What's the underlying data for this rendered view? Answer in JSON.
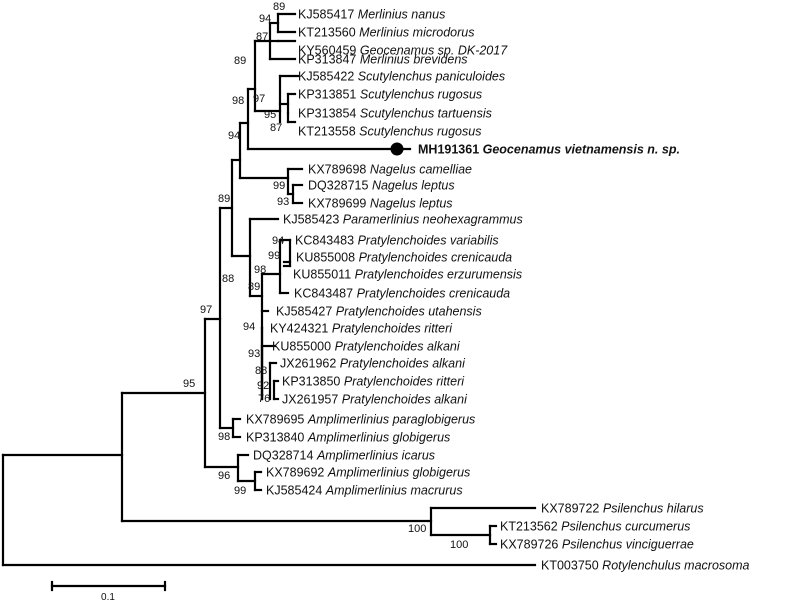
{
  "taxa": [
    {
      "acc": "KJ585417",
      "name": "Merlinius nanus"
    },
    {
      "acc": "KT213560",
      "name": "Merlinius microdorus"
    },
    {
      "acc": "KY560459",
      "name": "Geocenamus sp. DK-2017"
    },
    {
      "acc": "KP313847",
      "name": "Merlinius brevidens"
    },
    {
      "acc": "KJ585422",
      "name": "Scutylenchus paniculoides"
    },
    {
      "acc": "KP313851",
      "name": "Scutylenchus rugosus"
    },
    {
      "acc": "KP313854",
      "name": "Scutylenchus tartuensis"
    },
    {
      "acc": "KT213558",
      "name": "Scutylenchus rugosus"
    },
    {
      "acc": "MH191361",
      "name": "Geocenamus vietnamensis n. sp.",
      "highlight": true
    },
    {
      "acc": "KX789698",
      "name": "Nagelus camelliae"
    },
    {
      "acc": "DQ328715",
      "name": "Nagelus leptus"
    },
    {
      "acc": "KX789699",
      "name": "Nagelus leptus"
    },
    {
      "acc": "KJ585423",
      "name": "Paramerlinius neohexagrammus"
    },
    {
      "acc": "KC843483",
      "name": "Pratylenchoides variabilis"
    },
    {
      "acc": "KU855008",
      "name": "Pratylenchoides crenicauda"
    },
    {
      "acc": "KU855011",
      "name": "Pratylenchoides erzurumensis"
    },
    {
      "acc": "KC843487",
      "name": "Pratylenchoides crenicauda"
    },
    {
      "acc": "KJ585427",
      "name": "Pratylenchoides utahensis"
    },
    {
      "acc": "KY424321",
      "name": "Pratylenchoides ritteri"
    },
    {
      "acc": "KU855000",
      "name": "Pratylenchoides alkani"
    },
    {
      "acc": "JX261962",
      "name": "Pratylenchoides alkani"
    },
    {
      "acc": "KP313850",
      "name": "Pratylenchoides ritteri"
    },
    {
      "acc": "JX261957",
      "name": "Pratylenchoides alkani"
    },
    {
      "acc": "KX789695",
      "name": "Amplimerlinius paraglobigerus"
    },
    {
      "acc": "KP313840",
      "name": "Amplimerlinius globigerus"
    },
    {
      "acc": "DQ328714",
      "name": "Amplimerlinius icarus"
    },
    {
      "acc": "KX789692",
      "name": "Amplimerlinius globigerus"
    },
    {
      "acc": "KJ585424",
      "name": "Amplimerlinius macrurus"
    },
    {
      "acc": "KX789722",
      "name": "Psilenchus hilarus"
    },
    {
      "acc": "KT213562",
      "name": "Psilenchus curcumerus"
    },
    {
      "acc": "KX789726",
      "name": "Psilenchus vinciguerrae"
    },
    {
      "acc": "KT003750",
      "name": "Rotylenchulus macrosoma"
    }
  ],
  "bootstrap": [
    "89",
    "94",
    "87",
    "89",
    "97",
    "95",
    "87",
    "98",
    "94",
    "99",
    "93",
    "89",
    "94",
    "99",
    "98",
    "89",
    "88",
    "94",
    "93",
    "88",
    "92",
    "76",
    "97",
    "98",
    "95",
    "96",
    "99",
    "100",
    "100"
  ],
  "scale_bar": {
    "label": "0.1"
  }
}
